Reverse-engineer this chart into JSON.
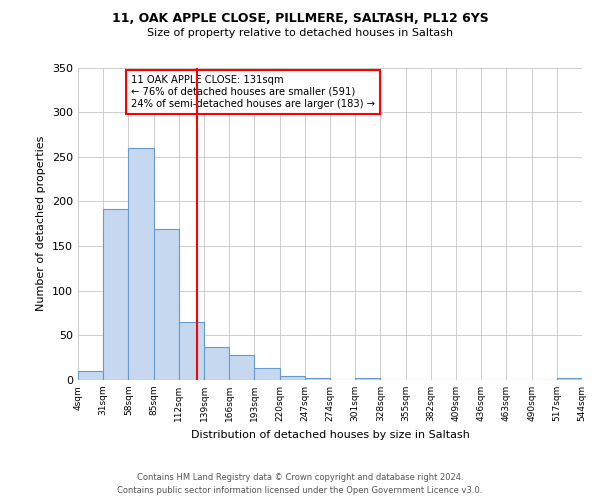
{
  "title1": "11, OAK APPLE CLOSE, PILLMERE, SALTASH, PL12 6YS",
  "title2": "Size of property relative to detached houses in Saltash",
  "xlabel": "Distribution of detached houses by size in Saltash",
  "ylabel": "Number of detached properties",
  "bin_edges": [
    4,
    31,
    58,
    85,
    112,
    139,
    166,
    193,
    220,
    247,
    274,
    301,
    328,
    355,
    382,
    409,
    436,
    463,
    490,
    517,
    544
  ],
  "bar_heights": [
    10,
    191,
    260,
    169,
    65,
    37,
    28,
    13,
    5,
    2,
    0,
    2,
    0,
    0,
    0,
    0,
    0,
    0,
    0,
    2
  ],
  "bar_color": "#c5d8f0",
  "bar_edgecolor": "#6699cc",
  "bar_linewidth": 0.8,
  "property_line_x": 131,
  "property_line_color": "red",
  "annotation_title": "11 OAK APPLE CLOSE: 131sqm",
  "annotation_line1": "← 76% of detached houses are smaller (591)",
  "annotation_line2": "24% of semi-detached houses are larger (183) →",
  "annotation_box_edgecolor": "red",
  "ylim": [
    0,
    350
  ],
  "yticks": [
    0,
    50,
    100,
    150,
    200,
    250,
    300,
    350
  ],
  "grid_color": "#cccccc",
  "background_color": "#ffffff",
  "footer1": "Contains HM Land Registry data © Crown copyright and database right 2024.",
  "footer2": "Contains public sector information licensed under the Open Government Licence v3.0."
}
